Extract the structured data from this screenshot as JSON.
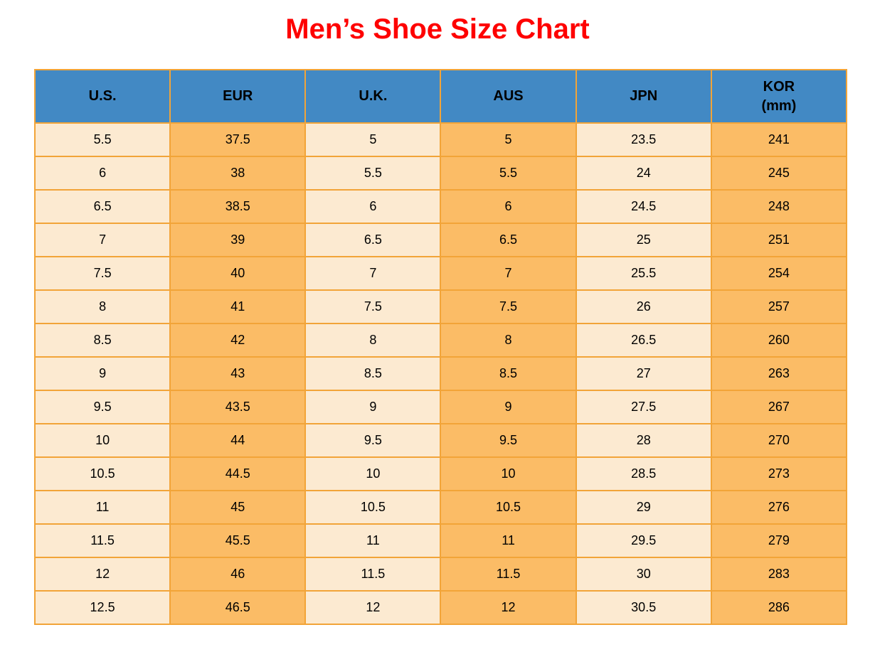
{
  "page": {
    "title": "Men’s Shoe Size Chart"
  },
  "colors": {
    "title": "#FE0000",
    "header_bg": "#4289C4",
    "col_light": "#FCEAD1",
    "col_orange": "#FBBC66",
    "grid": "#F2A438",
    "text": "#000000"
  },
  "table": {
    "columns": [
      {
        "label": "U.S.",
        "sub": ""
      },
      {
        "label": "EUR",
        "sub": ""
      },
      {
        "label": "U.K.",
        "sub": ""
      },
      {
        "label": "AUS",
        "sub": ""
      },
      {
        "label": "JPN",
        "sub": ""
      },
      {
        "label": "KOR",
        "sub": "(mm)"
      }
    ],
    "rows": [
      [
        "5.5",
        "37.5",
        "5",
        "5",
        "23.5",
        "241"
      ],
      [
        "6",
        "38",
        "5.5",
        "5.5",
        "24",
        "245"
      ],
      [
        "6.5",
        "38.5",
        "6",
        "6",
        "24.5",
        "248"
      ],
      [
        "7",
        "39",
        "6.5",
        "6.5",
        "25",
        "251"
      ],
      [
        "7.5",
        "40",
        "7",
        "7",
        "25.5",
        "254"
      ],
      [
        "8",
        "41",
        "7.5",
        "7.5",
        "26",
        "257"
      ],
      [
        "8.5",
        "42",
        "8",
        "8",
        "26.5",
        "260"
      ],
      [
        "9",
        "43",
        "8.5",
        "8.5",
        "27",
        "263"
      ],
      [
        "9.5",
        "43.5",
        "9",
        "9",
        "27.5",
        "267"
      ],
      [
        "10",
        "44",
        "9.5",
        "9.5",
        "28",
        "270"
      ],
      [
        "10.5",
        "44.5",
        "10",
        "10",
        "28.5",
        "273"
      ],
      [
        "11",
        "45",
        "10.5",
        "10.5",
        "29",
        "276"
      ],
      [
        "11.5",
        "45.5",
        "11",
        "11",
        "29.5",
        "279"
      ],
      [
        "12",
        "46",
        "11.5",
        "11.5",
        "30",
        "283"
      ],
      [
        "12.5",
        "46.5",
        "12",
        "12",
        "30.5",
        "286"
      ]
    ]
  },
  "chart_data": {
    "type": "table",
    "title": "Men’s Shoe Size Chart",
    "columns": [
      "U.S.",
      "EUR",
      "U.K.",
      "AUS",
      "JPN",
      "KOR (mm)"
    ],
    "rows": [
      [
        "5.5",
        "37.5",
        "5",
        "5",
        "23.5",
        "241"
      ],
      [
        "6",
        "38",
        "5.5",
        "5.5",
        "24",
        "245"
      ],
      [
        "6.5",
        "38.5",
        "6",
        "6",
        "24.5",
        "248"
      ],
      [
        "7",
        "39",
        "6.5",
        "6.5",
        "25",
        "251"
      ],
      [
        "7.5",
        "40",
        "7",
        "7",
        "25.5",
        "254"
      ],
      [
        "8",
        "41",
        "7.5",
        "7.5",
        "26",
        "257"
      ],
      [
        "8.5",
        "42",
        "8",
        "8",
        "26.5",
        "260"
      ],
      [
        "9",
        "43",
        "8.5",
        "8.5",
        "27",
        "263"
      ],
      [
        "9.5",
        "43.5",
        "9",
        "9",
        "27.5",
        "267"
      ],
      [
        "10",
        "44",
        "9.5",
        "9.5",
        "28",
        "270"
      ],
      [
        "10.5",
        "44.5",
        "10",
        "10",
        "28.5",
        "273"
      ],
      [
        "11",
        "45",
        "10.5",
        "10.5",
        "29",
        "276"
      ],
      [
        "11.5",
        "45.5",
        "11",
        "11",
        "29.5",
        "279"
      ],
      [
        "12",
        "46",
        "11.5",
        "11.5",
        "30",
        "283"
      ],
      [
        "12.5",
        "46.5",
        "12",
        "12",
        "30.5",
        "286"
      ]
    ],
    "layout": {
      "header_position": "top",
      "column_fill_alternation": [
        "light",
        "orange"
      ],
      "grid": true
    }
  }
}
